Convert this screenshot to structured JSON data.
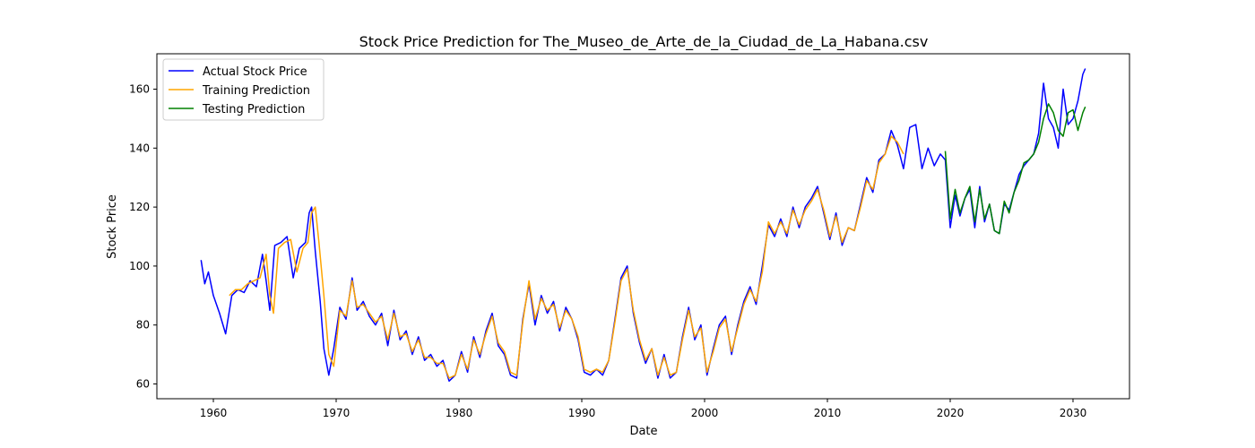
{
  "chart_data": {
    "type": "line",
    "title": "Stock Price Prediction for The_Museo_de_Arte_de_la_Ciudad_de_La_Habana.csv",
    "xlabel": "Date",
    "ylabel": "Stock Price",
    "xlim": [
      1955.4,
      2034.6
    ],
    "ylim": [
      55,
      172
    ],
    "xticks": [
      1960,
      1970,
      1980,
      1990,
      2000,
      2010,
      2020,
      2030
    ],
    "xtick_labels": [
      "1960",
      "1970",
      "1980",
      "1990",
      "2000",
      "2010",
      "2020",
      "2030"
    ],
    "yticks": [
      60,
      80,
      100,
      120,
      140,
      160
    ],
    "ytick_labels": [
      "60",
      "80",
      "100",
      "120",
      "140",
      "160"
    ],
    "grid": false,
    "legend_position": "upper-left",
    "series": [
      {
        "name": "Actual Stock Price",
        "color": "#0000ff",
        "x": [
          1959.0,
          1959.3,
          1959.6,
          1960.0,
          1960.5,
          1961.0,
          1961.5,
          1962.0,
          1962.5,
          1963.0,
          1963.5,
          1964.0,
          1964.3,
          1964.6,
          1965.0,
          1965.5,
          1966.0,
          1966.5,
          1967.0,
          1967.5,
          1967.8,
          1968.0,
          1968.3,
          1968.7,
          1969.0,
          1969.4,
          1969.8,
          1970.3,
          1970.8,
          1971.3,
          1971.7,
          1972.2,
          1972.7,
          1973.2,
          1973.7,
          1974.2,
          1974.7,
          1975.2,
          1975.7,
          1976.2,
          1976.7,
          1977.2,
          1977.7,
          1978.2,
          1978.7,
          1979.2,
          1979.7,
          1980.2,
          1980.7,
          1981.2,
          1981.7,
          1982.2,
          1982.7,
          1983.2,
          1983.7,
          1984.2,
          1984.7,
          1985.2,
          1985.7,
          1986.2,
          1986.7,
          1987.2,
          1987.7,
          1988.2,
          1988.7,
          1989.2,
          1989.7,
          1990.2,
          1990.7,
          1991.2,
          1991.7,
          1992.2,
          1992.7,
          1993.2,
          1993.7,
          1994.2,
          1994.7,
          1995.2,
          1995.7,
          1996.2,
          1996.7,
          1997.2,
          1997.7,
          1998.2,
          1998.7,
          1999.2,
          1999.7,
          2000.2,
          2000.7,
          2001.2,
          2001.7,
          2002.2,
          2002.7,
          2003.2,
          2003.7,
          2004.2,
          2004.7,
          2005.2,
          2005.7,
          2006.2,
          2006.7,
          2007.2,
          2007.7,
          2008.2,
          2008.7,
          2009.2,
          2009.7,
          2010.2,
          2010.7,
          2011.2,
          2011.7,
          2012.2,
          2012.7,
          2013.2,
          2013.7,
          2014.2,
          2014.7,
          2015.2,
          2015.7,
          2016.2,
          2016.7,
          2017.2,
          2017.7,
          2018.2,
          2018.7,
          2019.2,
          2019.6,
          2020.0,
          2020.4,
          2020.8,
          2021.2,
          2021.6,
          2022.0,
          2022.4,
          2022.8,
          2023.2,
          2023.6,
          2024.0,
          2024.4,
          2024.8,
          2025.2,
          2025.6,
          2026.0,
          2026.4,
          2026.8,
          2027.2,
          2027.6,
          2028.0,
          2028.4,
          2028.8,
          2029.2,
          2029.6,
          2030.0,
          2030.4,
          2030.8,
          2031.0
        ],
        "y": [
          102,
          94,
          98,
          90,
          84,
          77,
          90,
          92,
          91,
          95,
          93,
          104,
          95,
          85,
          107,
          108,
          110,
          96,
          106,
          108,
          118,
          120,
          105,
          88,
          72,
          63,
          72,
          86,
          82,
          96,
          85,
          88,
          83,
          80,
          84,
          73,
          85,
          75,
          78,
          70,
          76,
          68,
          70,
          66,
          68,
          61,
          63,
          71,
          64,
          76,
          69,
          78,
          84,
          73,
          70,
          63,
          62,
          82,
          94,
          80,
          90,
          84,
          88,
          78,
          86,
          82,
          75,
          64,
          63,
          65,
          63,
          68,
          82,
          96,
          100,
          84,
          74,
          67,
          72,
          62,
          70,
          62,
          64,
          76,
          86,
          75,
          80,
          63,
          72,
          80,
          83,
          70,
          80,
          88,
          93,
          87,
          100,
          114,
          110,
          116,
          110,
          120,
          113,
          120,
          123,
          127,
          118,
          109,
          118,
          107,
          113,
          112,
          121,
          130,
          125,
          136,
          138,
          146,
          141,
          133,
          147,
          148,
          133,
          140,
          134,
          138,
          136,
          113,
          124,
          117,
          123,
          126,
          113,
          127,
          115,
          121,
          112,
          111,
          121,
          119,
          125,
          131,
          134,
          136,
          138,
          145,
          162,
          150,
          147,
          140,
          160,
          148,
          150,
          156,
          165,
          167
        ]
      },
      {
        "name": "Training Prediction",
        "color": "#ffa500",
        "x": [
          1961.3,
          1961.8,
          1962.3,
          1962.8,
          1963.3,
          1963.8,
          1964.3,
          1964.6,
          1964.9,
          1965.3,
          1965.8,
          1966.3,
          1966.8,
          1967.3,
          1967.7,
          1968.0,
          1968.3,
          1968.6,
          1969.0,
          1969.4,
          1969.8,
          1970.3,
          1970.8,
          1971.3,
          1971.7,
          1972.2,
          1972.7,
          1973.2,
          1973.7,
          1974.2,
          1974.7,
          1975.2,
          1975.7,
          1976.2,
          1976.7,
          1977.2,
          1977.7,
          1978.2,
          1978.7,
          1979.2,
          1979.7,
          1980.2,
          1980.7,
          1981.2,
          1981.7,
          1982.2,
          1982.7,
          1983.2,
          1983.7,
          1984.2,
          1984.7,
          1985.2,
          1985.7,
          1986.2,
          1986.7,
          1987.2,
          1987.7,
          1988.2,
          1988.7,
          1989.2,
          1989.7,
          1990.2,
          1990.7,
          1991.2,
          1991.7,
          1992.2,
          1992.7,
          1993.2,
          1993.7,
          1994.2,
          1994.7,
          1995.2,
          1995.7,
          1996.2,
          1996.7,
          1997.2,
          1997.7,
          1998.2,
          1998.7,
          1999.2,
          1999.7,
          2000.2,
          2000.7,
          2001.2,
          2001.7,
          2002.2,
          2002.7,
          2003.2,
          2003.7,
          2004.2,
          2004.7,
          2005.2,
          2005.7,
          2006.2,
          2006.7,
          2007.2,
          2007.7,
          2008.2,
          2008.7,
          2009.2,
          2009.7,
          2010.2,
          2010.7,
          2011.2,
          2011.7,
          2012.2,
          2012.7,
          2013.2,
          2013.7,
          2014.2,
          2014.7,
          2015.2,
          2015.7,
          2016.2
        ],
        "y": [
          90,
          92,
          92,
          94,
          95,
          96,
          104,
          90,
          84,
          106,
          108,
          109,
          98,
          106,
          108,
          118,
          120,
          108,
          90,
          70,
          66,
          85,
          83,
          95,
          86,
          87,
          84,
          81,
          83,
          75,
          84,
          76,
          77,
          71,
          75,
          69,
          69,
          67,
          67,
          62,
          63,
          70,
          65,
          75,
          70,
          77,
          83,
          74,
          71,
          64,
          63,
          81,
          95,
          82,
          89,
          85,
          87,
          79,
          85,
          82,
          76,
          65,
          64,
          65,
          64,
          68,
          81,
          95,
          99,
          85,
          75,
          68,
          72,
          63,
          69,
          63,
          64,
          75,
          85,
          76,
          79,
          64,
          71,
          79,
          82,
          71,
          79,
          87,
          92,
          88,
          98,
          115,
          111,
          115,
          111,
          119,
          114,
          119,
          122,
          126,
          119,
          110,
          117,
          108,
          113,
          112,
          120,
          129,
          126,
          135,
          138,
          144,
          142,
          138
        ]
      },
      {
        "name": "Testing Prediction",
        "color": "#008000",
        "x": [
          2019.6,
          2020.0,
          2020.4,
          2020.8,
          2021.2,
          2021.6,
          2022.0,
          2022.4,
          2022.8,
          2023.2,
          2023.6,
          2024.0,
          2024.4,
          2024.8,
          2025.2,
          2025.6,
          2026.0,
          2026.4,
          2026.8,
          2027.2,
          2027.6,
          2028.0,
          2028.4,
          2028.8,
          2029.2,
          2029.6,
          2030.0,
          2030.4,
          2030.8,
          2031.0
        ],
        "y": [
          139,
          116,
          126,
          118,
          123,
          127,
          115,
          126,
          116,
          121,
          112,
          111,
          122,
          118,
          125,
          129,
          135,
          136,
          138,
          142,
          150,
          155,
          152,
          146,
          144,
          152,
          153,
          146,
          152,
          154
        ]
      }
    ]
  }
}
